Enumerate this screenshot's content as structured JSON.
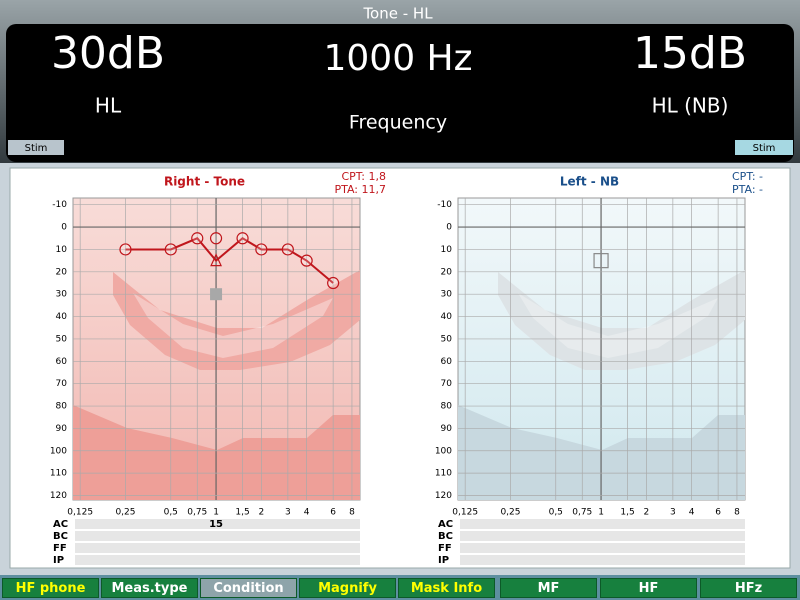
{
  "header": {
    "title": "Tone - HL",
    "left_level": "30dB",
    "left_label": "HL",
    "frequency": "1000 Hz",
    "frequency_label": "Frequency",
    "right_level": "15dB",
    "right_label": "HL (NB)",
    "stim_left": "Stim",
    "stim_right": "Stim"
  },
  "audiograms": [
    {
      "title": "Right - Tone",
      "cpt": "CPT: 1,8",
      "pta": "PTA: 11,7",
      "color": "#c0161c",
      "xscale": "log",
      "xlim": [
        0.112,
        9.05
      ],
      "ylim": [
        -13,
        122
      ],
      "xticks": [
        {
          "value": 0.125,
          "label": "0,125"
        },
        {
          "value": 0.25,
          "label": "0,25"
        },
        {
          "value": 0.5,
          "label": "0,5"
        },
        {
          "value": 0.75,
          "label": "0,75"
        },
        1,
        {
          "value": 1.5,
          "label": "1,5"
        },
        2,
        3,
        4,
        6,
        8
      ],
      "yticks": [
        -10,
        0,
        10,
        20,
        30,
        40,
        50,
        60,
        70,
        80,
        90,
        100,
        110,
        120
      ],
      "thresholds": {
        "x": [
          0.25,
          0.5,
          0.75,
          1,
          1.5,
          2,
          3,
          4,
          6
        ],
        "values": [
          10,
          10,
          5,
          5,
          5,
          10,
          10,
          15,
          25
        ]
      },
      "line": {
        "x": [
          0.25,
          0.5,
          0.75,
          1,
          1.5,
          2,
          3,
          4,
          6
        ],
        "values": [
          10,
          10,
          5,
          15,
          5,
          10,
          10,
          15,
          25
        ]
      },
      "current": {
        "x": 1,
        "value": 15
      },
      "masking": {
        "x": 1,
        "value": 30
      },
      "rows": [
        "AC",
        "BC",
        "FF",
        "IP"
      ],
      "row_value": {
        "x": 1,
        "text": "15"
      }
    },
    {
      "title": "Left - NB",
      "cpt": "CPT:  -",
      "pta": "PTA:  -",
      "color": "#1a4f8a",
      "xscale": "log",
      "xlim": [
        0.112,
        9.05
      ],
      "ylim": [
        -13,
        122
      ],
      "xticks": [
        {
          "value": 0.125,
          "label": "0,125"
        },
        {
          "value": 0.25,
          "label": "0,25"
        },
        {
          "value": 0.5,
          "label": "0,5"
        },
        {
          "value": 0.75,
          "label": "0,75"
        },
        1,
        {
          "value": 1.5,
          "label": "1,5"
        },
        2,
        3,
        4,
        6,
        8
      ],
      "yticks": [
        -10,
        0,
        10,
        20,
        30,
        40,
        50,
        60,
        70,
        80,
        90,
        100,
        110,
        120
      ],
      "current": {
        "x": 1,
        "value": 15
      },
      "rows": [
        "AC",
        "BC",
        "FF",
        "IP"
      ]
    }
  ],
  "buttons": [
    "HF phone",
    "Meas.type",
    "Condition",
    "Magnify",
    "Mask Info",
    "MF",
    "HF",
    "HFz"
  ]
}
